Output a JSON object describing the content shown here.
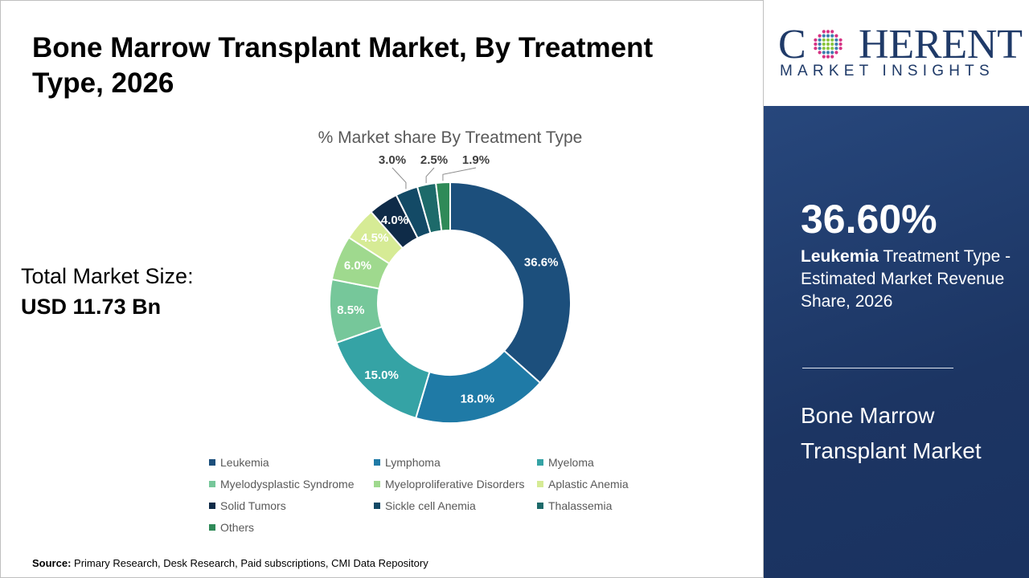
{
  "title": "Bone Marrow Transplant Market, By Treatment Type, 2026",
  "total_market": {
    "label": "Total Market Size:",
    "value": "USD 11.73 Bn"
  },
  "source": {
    "label": "Source:",
    "text": " Primary Research, Desk Research, Paid subscriptions, CMI Data Repository"
  },
  "logo": {
    "main": "COHERENT",
    "sub": "MARKET INSIGHTS"
  },
  "highlight": {
    "value": "36.60%",
    "segment": "Leukemia",
    "description": " Treatment Type - Estimated Market Revenue Share, 2026",
    "market_name": "Bone Marrow Transplant Market"
  },
  "chart_data": {
    "type": "pie",
    "donut": true,
    "title": "% Market share By Treatment Type",
    "legend_position": "bottom",
    "categories": [
      "Leukemia",
      "Lymphoma",
      "Myeloma",
      "Myelodysplastic Syndrome",
      "Myeloproliferative Disorders",
      "Aplastic Anemia",
      "Solid Tumors",
      "Sickle cell Anemia",
      "Thalassemia",
      "Others"
    ],
    "values": [
      36.6,
      18.0,
      15.0,
      8.5,
      6.0,
      4.5,
      4.0,
      3.0,
      2.5,
      1.9
    ],
    "labels": [
      "36.6%",
      "18.0%",
      "15.0%",
      "8.5%",
      "6.0%",
      "4.5%",
      "4.0%",
      "3.0%",
      "2.5%",
      "1.9%"
    ],
    "colors": [
      "#1c4f7c",
      "#1f7aa6",
      "#35a3a5",
      "#76c79a",
      "#9fd98e",
      "#d6eb95",
      "#0f2b48",
      "#134a66",
      "#1d6a6a",
      "#2f8a58"
    ]
  }
}
